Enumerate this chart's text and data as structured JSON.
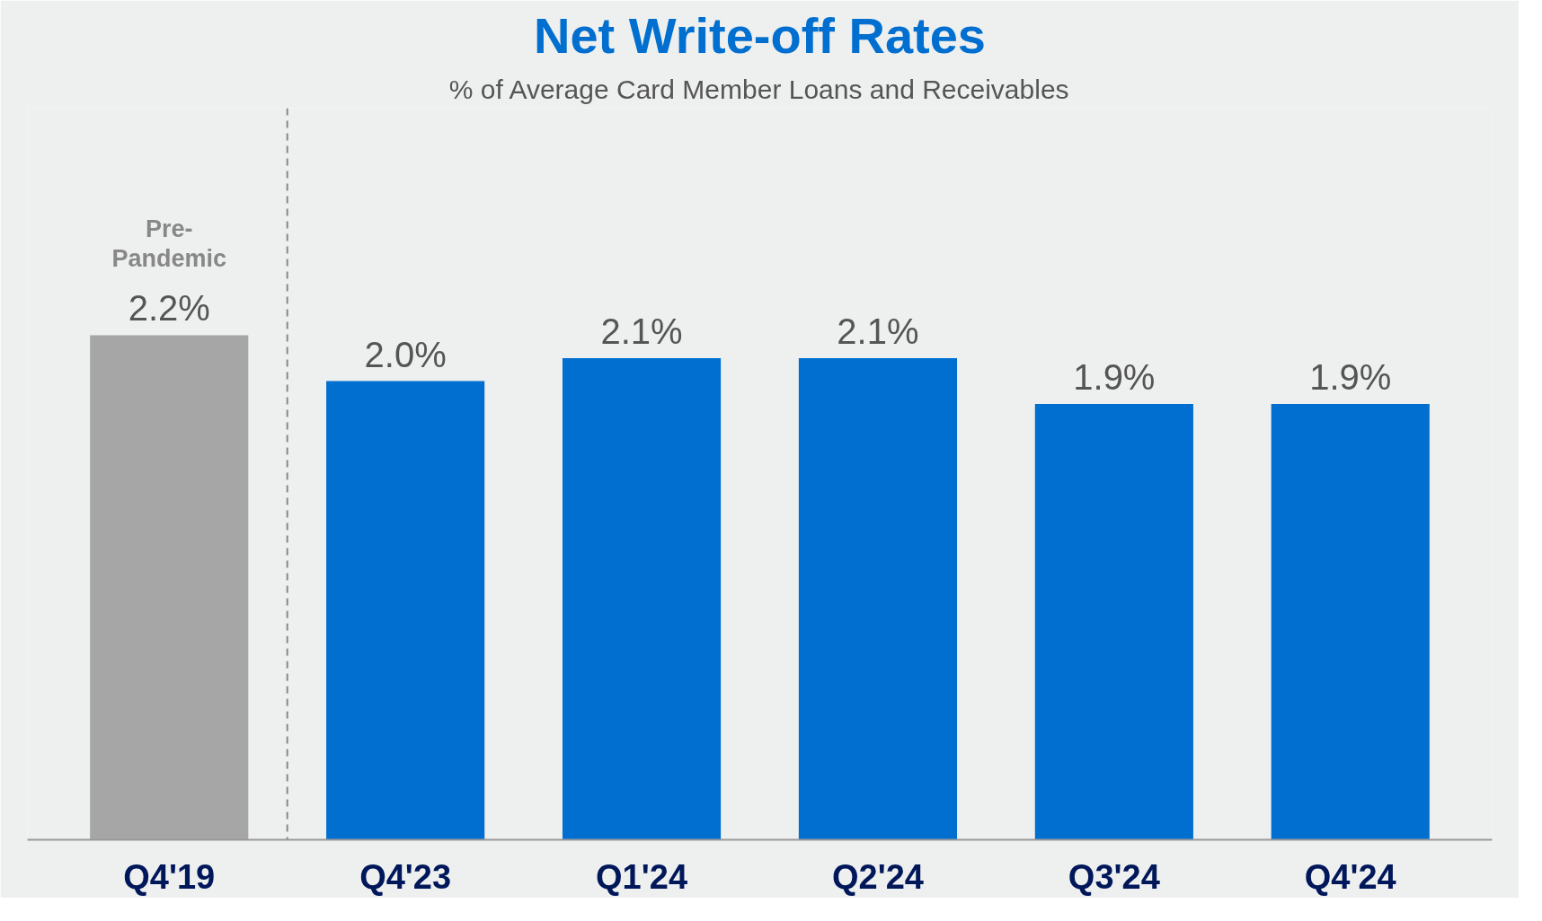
{
  "chart_data": {
    "type": "bar",
    "title": "Net Write-off Rates",
    "subtitle": "% of Average Card Member Loans and Receivables",
    "categories": [
      "Q4'19",
      "Q4'23",
      "Q1'24",
      "Q2'24",
      "Q3'24",
      "Q4'24"
    ],
    "values": [
      2.2,
      2.0,
      2.1,
      2.1,
      1.9,
      1.9
    ],
    "colors": [
      "#a6a6a6",
      "#006fcf",
      "#006fcf",
      "#006fcf",
      "#006fcf",
      "#006fcf"
    ],
    "value_labels": [
      "2.2%",
      "2.0%",
      "2.1%",
      "2.1%",
      "1.9%",
      "1.9%"
    ],
    "annotations": [
      "Pre-\nPandemic"
    ],
    "grid": false
  }
}
